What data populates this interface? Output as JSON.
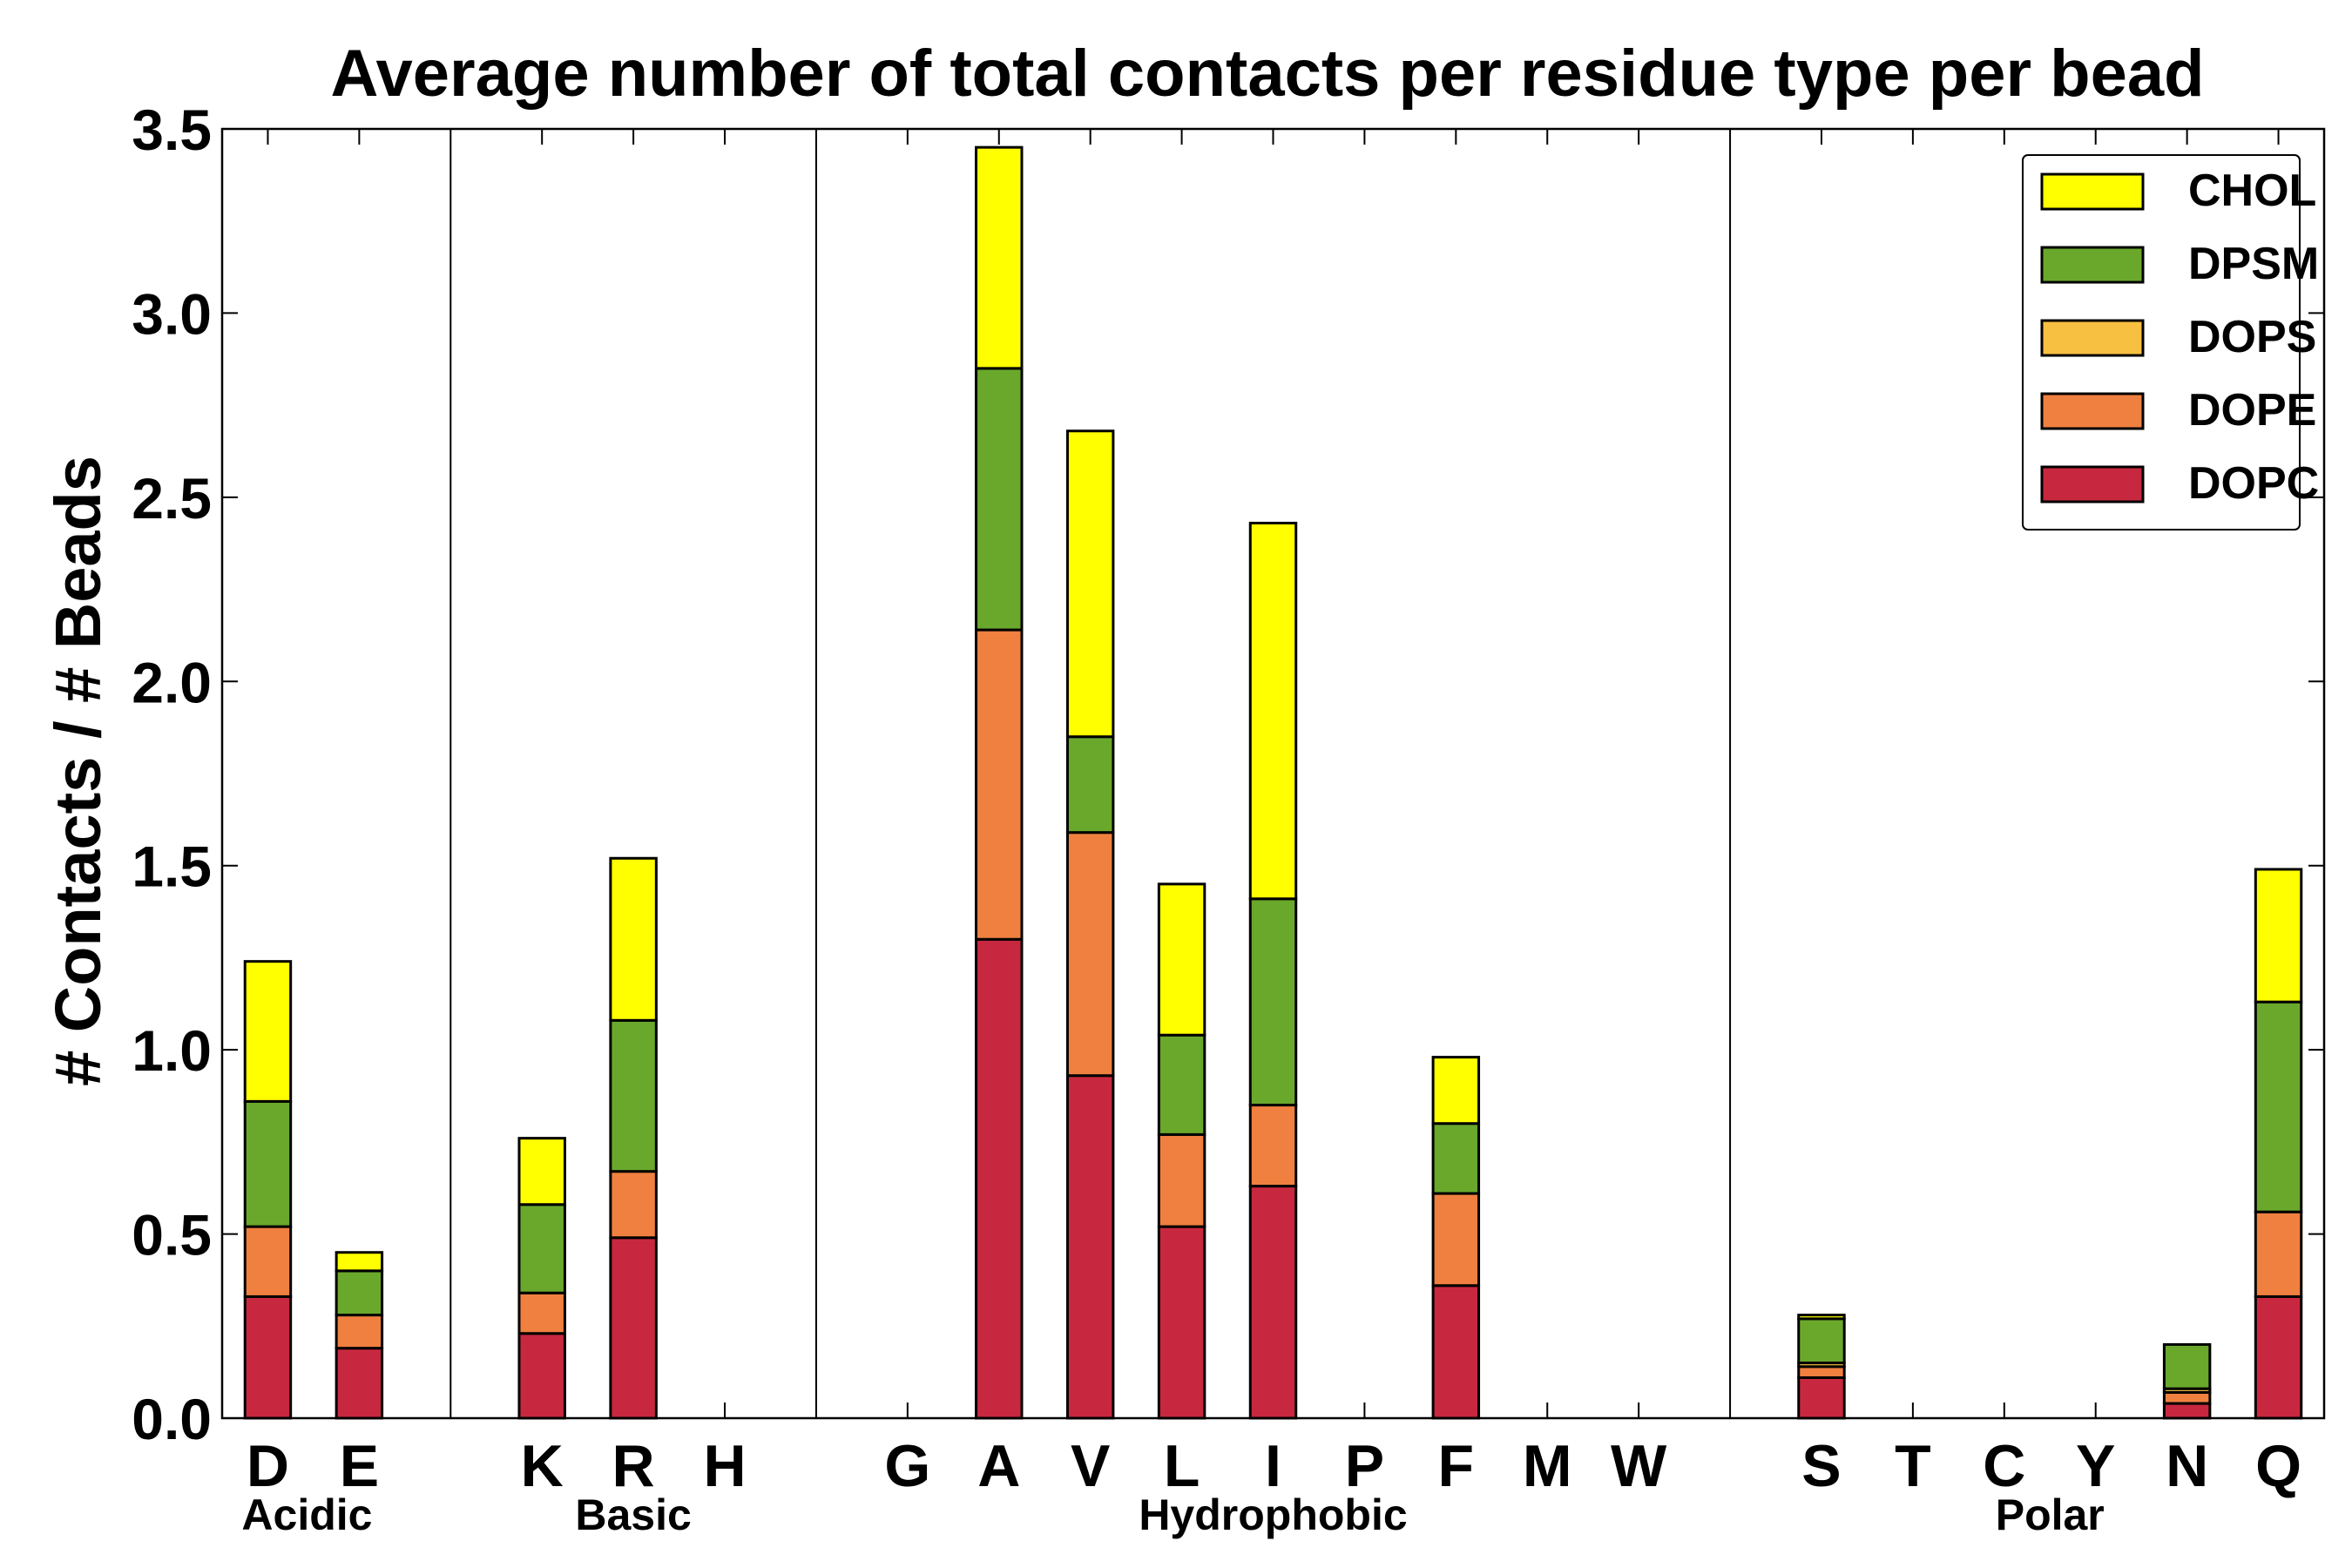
{
  "chart_data": {
    "type": "bar",
    "stacked": true,
    "title": "Average number of total contacts per residue type per bead",
    "xlabel": "",
    "ylabel": "# Contacts / # Beads",
    "ylim": [
      0,
      3.5
    ],
    "yticks": [
      "0.0",
      "0.5",
      "1.0",
      "1.5",
      "2.0",
      "2.5",
      "3.0",
      "3.5"
    ],
    "legend_position": "top-right",
    "categories": [
      "D",
      "E",
      "",
      "K",
      "R",
      "H",
      "",
      "G",
      "A",
      "V",
      "L",
      "I",
      "P",
      "F",
      "M",
      "W",
      "",
      "S",
      "T",
      "C",
      "Y",
      "N",
      "Q"
    ],
    "groups": [
      {
        "label": "Acidic",
        "start": 0,
        "end": 1
      },
      {
        "label": "Basic",
        "start": 3,
        "end": 5
      },
      {
        "label": "Hydrophobic",
        "start": 7,
        "end": 15
      },
      {
        "label": "Polar",
        "start": 17,
        "end": 22
      }
    ],
    "separators_after": [
      2,
      6,
      16
    ],
    "series": [
      {
        "name": "DOPC",
        "color": "#c8283f",
        "values": [
          0.33,
          0.19,
          0,
          0.23,
          0.49,
          0,
          0,
          0,
          1.3,
          0.93,
          0.52,
          0.63,
          0,
          0.36,
          0,
          0,
          0,
          0.11,
          0,
          0,
          0,
          0.04,
          0.33
        ]
      },
      {
        "name": "DOPE",
        "color": "#f08040",
        "values": [
          0.19,
          0.09,
          0,
          0.11,
          0.18,
          0,
          0,
          0,
          0.84,
          0.66,
          0.25,
          0.22,
          0,
          0.25,
          0,
          0,
          0,
          0.03,
          0,
          0,
          0,
          0.03,
          0.23
        ]
      },
      {
        "name": "DOPS",
        "color": "#f8c040",
        "values": [
          0,
          0,
          0,
          0,
          0,
          0,
          0,
          0,
          0,
          0,
          0,
          0,
          0,
          0,
          0,
          0,
          0,
          0.01,
          0,
          0,
          0,
          0.01,
          0
        ]
      },
      {
        "name": "DPSM",
        "color": "#6aa82c",
        "values": [
          0.34,
          0.12,
          0,
          0.24,
          0.41,
          0,
          0,
          0,
          0.71,
          0.26,
          0.27,
          0.56,
          0,
          0.19,
          0,
          0,
          0,
          0.12,
          0,
          0,
          0,
          0.12,
          0.57
        ]
      },
      {
        "name": "CHOL",
        "color": "#ffff00",
        "values": [
          0.38,
          0.05,
          0,
          0.18,
          0.44,
          0,
          0,
          0,
          0.6,
          0.83,
          0.41,
          1.02,
          0,
          0.18,
          0,
          0,
          0,
          0.01,
          0,
          0,
          0,
          0,
          0.36
        ]
      }
    ],
    "legend_order": [
      "CHOL",
      "DPSM",
      "DOPS",
      "DOPE",
      "DOPC"
    ]
  }
}
